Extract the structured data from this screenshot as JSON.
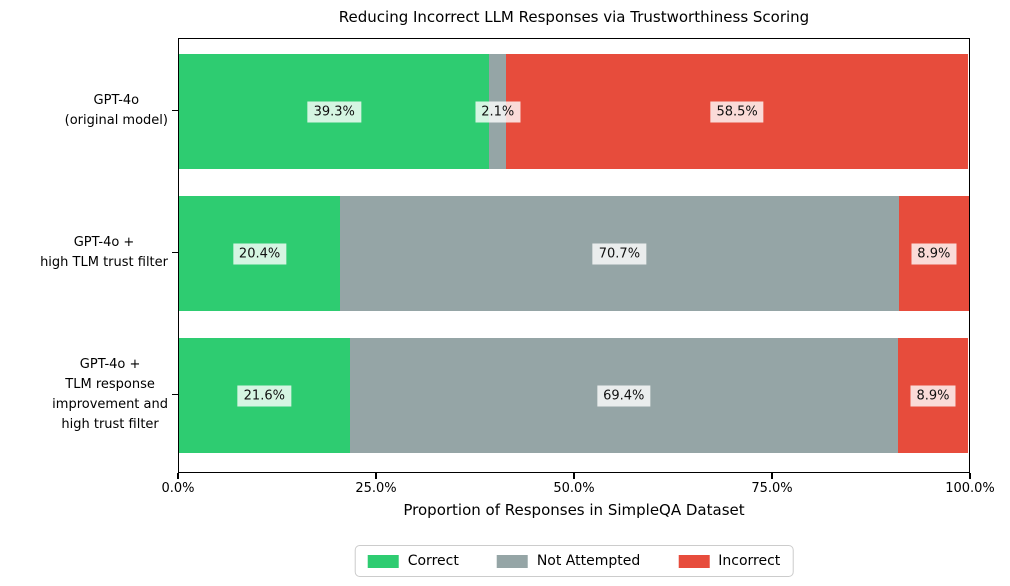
{
  "chart_data": {
    "type": "bar",
    "orientation": "horizontal",
    "stacked": true,
    "title": "Reducing Incorrect LLM Responses via Trustworthiness Scoring",
    "xlabel": "Proportion of Responses in SimpleQA Dataset",
    "ylabel": "",
    "xlim": [
      0,
      100
    ],
    "xtick_labels": [
      "0.0%",
      "25.0%",
      "50.0%",
      "75.0%",
      "100.0%"
    ],
    "xtick_values": [
      0,
      25,
      50,
      75,
      100
    ],
    "grid": false,
    "categories": [
      "GPT-4o\n(original model)",
      "GPT-4o +\nhigh TLM trust filter",
      "GPT-4o +\nTLM response\nimprovement and\nhigh trust filter"
    ],
    "series": [
      {
        "name": "Correct",
        "color": "#2ecc71",
        "values": [
          39.3,
          20.4,
          21.6
        ],
        "labels": [
          "39.3%",
          "20.4%",
          "21.6%"
        ]
      },
      {
        "name": "Not Attempted",
        "color": "#95a5a6",
        "values": [
          2.1,
          70.7,
          69.4
        ],
        "labels": [
          "2.1%",
          "70.7%",
          "69.4%"
        ]
      },
      {
        "name": "Incorrect",
        "color": "#e74c3c",
        "values": [
          58.5,
          8.9,
          8.9
        ],
        "labels": [
          "58.5%",
          "8.9%",
          "8.9%"
        ]
      }
    ],
    "legend": {
      "entries": [
        "Correct",
        "Not Attempted",
        "Incorrect"
      ],
      "position": "lower center, outside plot"
    },
    "label_box_background": "rgba(255,255,255,0.8)",
    "spine_color": "#000000"
  }
}
